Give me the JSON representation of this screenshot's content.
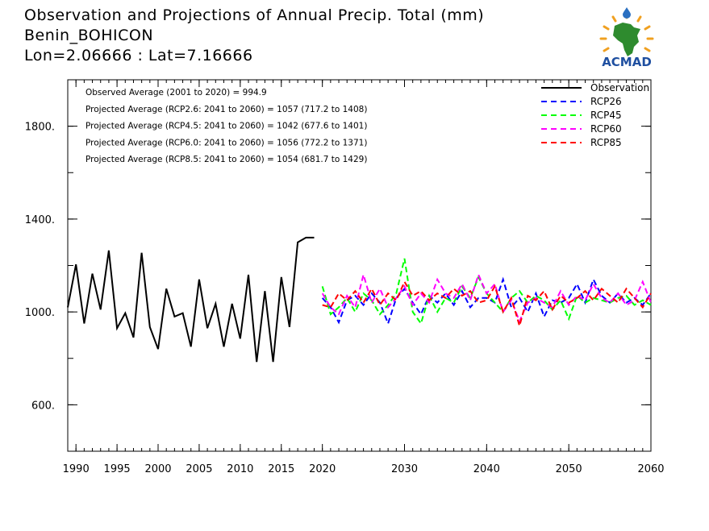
{
  "header": {
    "title": "Observation and Projections of Annual Precip. Total (mm)",
    "station": "Benin_BOHICON",
    "coords": "Lon=2.06666 : Lat=7.16666"
  },
  "logo": {
    "text": "ACMAD",
    "icon": "africa-sun-logo-icon",
    "colors": {
      "africa": "#2e8b2e",
      "rays": "#f0a020",
      "text": "#1f4fa0",
      "drop": "#2a6fc0"
    }
  },
  "annotations": [
    "Observed Average (2001 to 2020) = 994.9",
    "Projected Average (RCP2.6: 2041 to 2060) = 1057 (717.2 to 1408)",
    "Projected Average (RCP4.5: 2041 to 2060) = 1042 (677.6 to 1401)",
    "Projected Average (RCP6.0: 2041 to 2060) = 1056 (772.2 to 1371)",
    "Projected Average (RCP8.5: 2041 to 2060) = 1054 (681.7 to 1429)"
  ],
  "chart_data": {
    "type": "line",
    "title": "Observation and Projections of Annual Precip. Total (mm)",
    "xlabel": "",
    "ylabel": "",
    "xlim": [
      1989,
      2060
    ],
    "ylim": [
      400,
      2000
    ],
    "x_ticks": [
      1990,
      1995,
      2000,
      2005,
      2010,
      2015,
      2020,
      2030,
      2040,
      2050,
      2060
    ],
    "y_ticks": [
      600,
      1000,
      1400,
      1800
    ],
    "y_tick_labels": [
      "600.",
      "1000.",
      "1400.",
      "1800."
    ],
    "legend_position": "top-right",
    "grid": false,
    "series": [
      {
        "name": "Observation",
        "color": "#000000",
        "dash": "solid",
        "x": [
          1989,
          1990,
          1991,
          1992,
          1993,
          1994,
          1995,
          1996,
          1997,
          1998,
          1999,
          2000,
          2001,
          2002,
          2003,
          2004,
          2005,
          2006,
          2007,
          2008,
          2009,
          2010,
          2011,
          2012,
          2013,
          2014,
          2015,
          2016,
          2017,
          2018,
          2019
        ],
        "values": [
          1020,
          1205,
          950,
          1165,
          1010,
          1265,
          930,
          995,
          890,
          1255,
          935,
          840,
          1100,
          980,
          995,
          850,
          1140,
          930,
          1035,
          850,
          1035,
          885,
          1160,
          785,
          1090,
          785,
          1150,
          935,
          1300,
          1320,
          1320
        ]
      },
      {
        "name": "RCP26",
        "color": "#0000ff",
        "dash": "dashed",
        "x": [
          2020,
          2021,
          2022,
          2023,
          2024,
          2025,
          2026,
          2027,
          2028,
          2029,
          2030,
          2031,
          2032,
          2033,
          2034,
          2035,
          2036,
          2037,
          2038,
          2039,
          2040,
          2041,
          2042,
          2043,
          2044,
          2045,
          2046,
          2047,
          2048,
          2049,
          2050,
          2051,
          2052,
          2053,
          2054,
          2055,
          2056,
          2057,
          2058,
          2059,
          2060
        ],
        "values": [
          1060,
          1020,
          955,
          1050,
          1070,
          1030,
          1080,
          1040,
          950,
          1060,
          1100,
          1040,
          990,
          1070,
          1040,
          1080,
          1030,
          1090,
          1020,
          1060,
          1060,
          1040,
          1140,
          1020,
          1060,
          1000,
          1080,
          980,
          1050,
          1040,
          1060,
          1120,
          1040,
          1140,
          1070,
          1040,
          1080,
          1040,
          1060,
          1030,
          1080
        ]
      },
      {
        "name": "RCP45",
        "color": "#00ff00",
        "dash": "dashed",
        "x": [
          2020,
          2021,
          2022,
          2023,
          2024,
          2025,
          2026,
          2027,
          2028,
          2029,
          2030,
          2031,
          2032,
          2033,
          2034,
          2035,
          2036,
          2037,
          2038,
          2039,
          2040,
          2041,
          2042,
          2043,
          2044,
          2045,
          2046,
          2047,
          2048,
          2049,
          2050,
          2051,
          2052,
          2053,
          2054,
          2055,
          2056,
          2057,
          2058,
          2059,
          2060
        ],
        "values": [
          1110,
          990,
          1020,
          1060,
          1000,
          1080,
          1050,
          990,
          1030,
          1080,
          1230,
          1000,
          950,
          1070,
          1000,
          1060,
          1040,
          1110,
          1060,
          1150,
          1080,
          1040,
          1000,
          1060,
          1090,
          1040,
          1070,
          1050,
          1010,
          1050,
          970,
          1070,
          1040,
          1060,
          1050,
          1040,
          1060,
          1070,
          1030,
          1050,
          1030
        ]
      },
      {
        "name": "RCP60",
        "color": "#ff00ff",
        "dash": "dashed",
        "x": [
          2020,
          2021,
          2022,
          2023,
          2024,
          2025,
          2026,
          2027,
          2028,
          2029,
          2030,
          2031,
          2032,
          2033,
          2034,
          2035,
          2036,
          2037,
          2038,
          2039,
          2040,
          2041,
          2042,
          2043,
          2044,
          2045,
          2046,
          2047,
          2048,
          2049,
          2050,
          2051,
          2052,
          2053,
          2054,
          2055,
          2056,
          2057,
          2058,
          2059,
          2060
        ],
        "values": [
          1080,
          1020,
          990,
          1070,
          1020,
          1160,
          1040,
          1100,
          1020,
          1060,
          1110,
          1030,
          1080,
          1040,
          1140,
          1080,
          1060,
          1120,
          1050,
          1160,
          1080,
          1120,
          1000,
          1050,
          960,
          1040,
          1060,
          1040,
          1020,
          1090,
          1030,
          1070,
          1050,
          1120,
          1060,
          1040,
          1080,
          1030,
          1050,
          1130,
          1040
        ]
      },
      {
        "name": "RCP85",
        "color": "#ff0000",
        "dash": "dashed",
        "x": [
          2020,
          2021,
          2022,
          2023,
          2024,
          2025,
          2026,
          2027,
          2028,
          2029,
          2030,
          2031,
          2032,
          2033,
          2034,
          2035,
          2036,
          2037,
          2038,
          2039,
          2040,
          2041,
          2042,
          2043,
          2044,
          2045,
          2046,
          2047,
          2048,
          2049,
          2050,
          2051,
          2052,
          2053,
          2054,
          2055,
          2056,
          2057,
          2058,
          2059,
          2060
        ],
        "values": [
          1030,
          1020,
          1080,
          1050,
          1090,
          1040,
          1100,
          1030,
          1080,
          1050,
          1130,
          1070,
          1090,
          1050,
          1080,
          1060,
          1100,
          1070,
          1090,
          1040,
          1050,
          1110,
          1000,
          1060,
          940,
          1070,
          1050,
          1090,
          1010,
          1070,
          1040,
          1060,
          1090,
          1050,
          1100,
          1070,
          1040,
          1100,
          1060,
          1020,
          1080
        ]
      }
    ]
  }
}
